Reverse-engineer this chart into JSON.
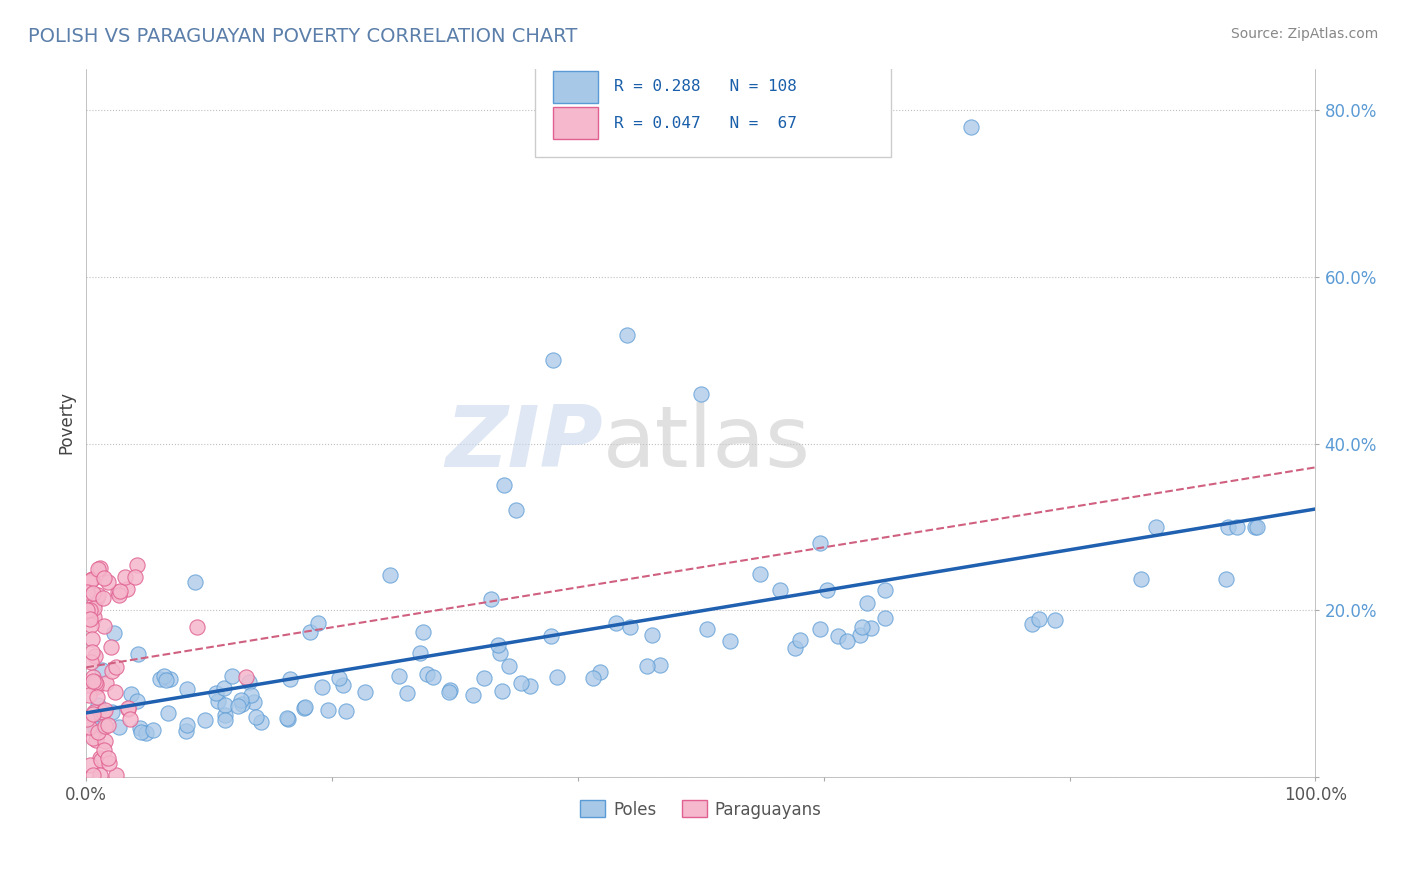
{
  "title": "POLISH VS PARAGUAYAN POVERTY CORRELATION CHART",
  "source": "Source: ZipAtlas.com",
  "ylabel": "Poverty",
  "poles_color": "#a8c8e8",
  "poles_edge_color": "#5b9bd5",
  "paraguayans_color": "#f5b8cc",
  "paraguayans_edge_color": "#e06090",
  "poles_R": 0.288,
  "poles_N": 108,
  "paraguayans_R": 0.047,
  "paraguayans_N": 67,
  "trend_blue": "#2060b0",
  "trend_pink": "#d06080",
  "legend_label_poles": "Poles",
  "legend_label_paraguayans": "Paraguayans",
  "ytick_color": "#5b9bd5",
  "xtick_color": "#555555"
}
